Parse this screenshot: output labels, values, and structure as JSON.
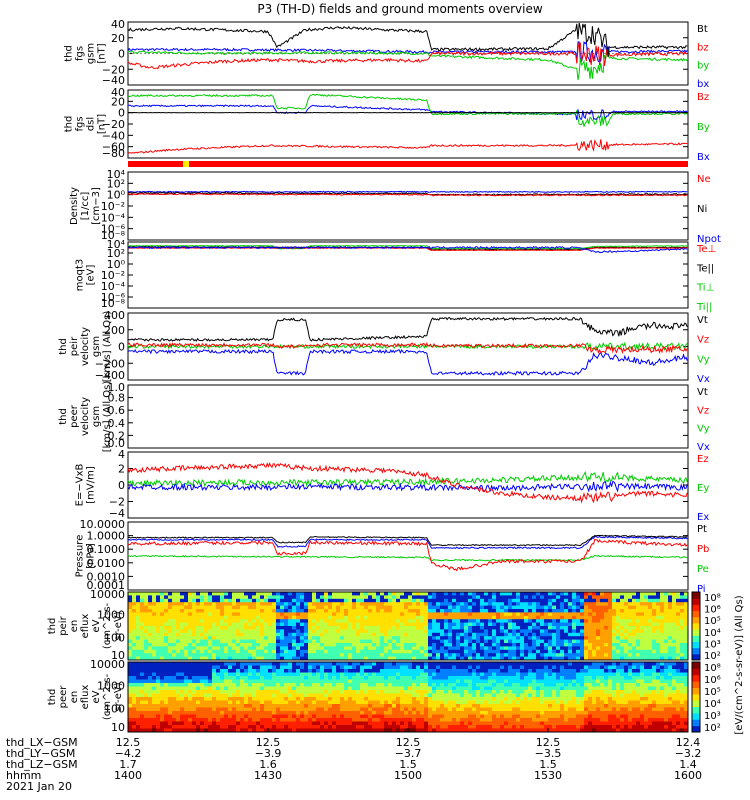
{
  "title": "P3 (TH-D) fields and ground moments overview",
  "panels": [
    {
      "id": "fgs",
      "ylabel": [
        "thd",
        "fgs",
        "gsm",
        "[nT]"
      ],
      "ticks": [
        "40",
        "20",
        "0",
        "−20",
        "−40"
      ],
      "legend": [
        {
          "text": "Bt",
          "color": "#000000"
        },
        {
          "text": "bz",
          "color": "#ff0000"
        },
        {
          "text": "by",
          "color": "#00cc00"
        },
        {
          "text": "bx",
          "color": "#0000ff"
        }
      ]
    },
    {
      "id": "fgs-dsl",
      "ylabel": [
        "thd",
        "fgs",
        "dsl",
        "[nT]"
      ],
      "ticks": [
        "40",
        "20",
        "0",
        "−20",
        "−40",
        "−60",
        "−80"
      ],
      "legend": [
        {
          "text": "Bz",
          "color": "#ff0000"
        },
        {
          "text": "By",
          "color": "#00cc00"
        },
        {
          "text": "Bx",
          "color": "#0000ff"
        }
      ]
    },
    {
      "id": "density",
      "ylabel": [
        "Density",
        "[1/cc]",
        "[cm−3]"
      ],
      "ticks": [
        "10⁴",
        "10²",
        "10⁰",
        "10⁻²",
        "10⁻⁴",
        "10⁻⁶",
        "10⁻⁸"
      ],
      "legend": [
        {
          "text": "Ne",
          "color": "#ff0000"
        },
        {
          "text": "Ni",
          "color": "#000000"
        },
        {
          "text": "Npot",
          "color": "#0000ff"
        }
      ]
    },
    {
      "id": "temp",
      "ylabel": [
        "moqt3",
        "[eV]"
      ],
      "ticks": [
        "10⁴",
        "10²",
        "10⁰",
        "10⁻²",
        "10⁻⁴",
        "10⁻⁶",
        "10⁻⁸"
      ],
      "legend": [
        {
          "text": "Te⊥",
          "color": "#ff0000"
        },
        {
          "text": "Te||",
          "color": "#000000"
        },
        {
          "text": "Ti⊥",
          "color": "#00cc00"
        },
        {
          "text": "Ti||",
          "color": "#00cc00"
        }
      ]
    },
    {
      "id": "peir-vel",
      "ylabel": [
        "thd",
        "peir",
        "velocity",
        "gsm",
        "[km/s] (All Qs)"
      ],
      "ticks": [
        "400",
        "200",
        "0",
        "−200",
        "−400"
      ],
      "legend": [
        {
          "text": "Vt",
          "color": "#000000"
        },
        {
          "text": "Vz",
          "color": "#ff0000"
        },
        {
          "text": "Vy",
          "color": "#00cc00"
        },
        {
          "text": "Vx",
          "color": "#0000ff"
        }
      ]
    },
    {
      "id": "peer-vel",
      "ylabel": [
        "thd",
        "peer",
        "velocity",
        "gsm",
        "[km/s] (All Qs)"
      ],
      "ticks": [
        "1.0",
        "0.8",
        "0.6",
        "0.4",
        "0.2",
        "0.0"
      ],
      "legend": [
        {
          "text": "Vt",
          "color": "#000000"
        },
        {
          "text": "Vz",
          "color": "#ff0000"
        },
        {
          "text": "Vy",
          "color": "#00cc00"
        },
        {
          "text": "Vx",
          "color": "#0000ff"
        }
      ]
    },
    {
      "id": "efield",
      "ylabel": [
        "E=−VxB",
        "[mV/m]"
      ],
      "ticks": [
        "4",
        "2",
        "0",
        "−2",
        "−4"
      ],
      "legend": [
        {
          "text": "Ez",
          "color": "#ff0000"
        },
        {
          "text": "Ey",
          "color": "#00cc00"
        },
        {
          "text": "Ex",
          "color": "#0000ff"
        }
      ]
    },
    {
      "id": "pressure",
      "ylabel": [
        "Pressure",
        "[nPa]"
      ],
      "ticks": [
        "10.0000",
        "1.0000",
        "0.1000",
        "0.0100",
        "0.0010",
        "0.0001"
      ],
      "legend": [
        {
          "text": "Pt",
          "color": "#000000"
        },
        {
          "text": "Pb",
          "color": "#ff0000"
        },
        {
          "text": "Pe",
          "color": "#00cc00"
        },
        {
          "text": "Pi",
          "color": "#0000ff"
        }
      ]
    },
    {
      "id": "peir-spec",
      "ylabel": [
        "thd",
        "peir",
        "en",
        "eflux",
        "eV",
        "(cm^2-s-",
        "sr-eV)"
      ],
      "ticks": [
        "10000",
        "1000",
        "100",
        "10"
      ]
    },
    {
      "id": "peer-spec",
      "ylabel": [
        "thd",
        "peer",
        "en",
        "eflux",
        "eV",
        "(cm^2-s-",
        "sr-eV)"
      ],
      "ticks": [
        "10000",
        "1000",
        "100",
        "10"
      ]
    }
  ],
  "colorbar": {
    "ticks": [
      "10⁸",
      "10⁶",
      "10⁵",
      "10⁴",
      "10³",
      "10²"
    ],
    "ticks2": [
      "10⁸",
      "10⁶",
      "10⁵",
      "10⁴",
      "10³",
      "10²"
    ],
    "label": "[eV/(cm^2-s-sr-eV)] (All Qs)"
  },
  "xaxis": {
    "rows": [
      {
        "label": "thd_LX−GSM",
        "values": [
          "12.5",
          "12.5",
          "12.5",
          "12.5",
          "12.4"
        ]
      },
      {
        "label": "thd_LY−GSM",
        "values": [
          "−4.2",
          "−3.9",
          "−3.7",
          "−3.5",
          "−3.2"
        ]
      },
      {
        "label": "thd_LZ−GSM",
        "values": [
          "1.7",
          "1.6",
          "1.5",
          "1.5",
          "1.4"
        ]
      },
      {
        "label": "hhmm",
        "values": [
          "1400",
          "1430",
          "1500",
          "1530",
          "1600"
        ]
      }
    ],
    "date": "2021 Jan 20"
  },
  "chart_data": {
    "type": "line",
    "title": "P3 (TH-D) fields and ground moments overview",
    "x_range": [
      "14:00",
      "16:00"
    ],
    "x_ticks": [
      "1400",
      "1430",
      "1500",
      "1530",
      "1600"
    ],
    "series": [
      {
        "name": "Bt",
        "panel": "fgs",
        "values": [
          [
            0,
            30
          ],
          [
            10,
            32
          ],
          [
            20,
            30
          ],
          [
            30,
            28
          ],
          [
            32,
            8
          ],
          [
            38,
            30
          ],
          [
            45,
            33
          ],
          [
            55,
            30
          ],
          [
            64,
            28
          ],
          [
            65,
            5
          ],
          [
            90,
            6
          ],
          [
            96,
            30
          ],
          [
            100,
            25
          ],
          [
            103,
            8
          ],
          [
            120,
            8
          ]
        ]
      },
      {
        "name": "bz",
        "panel": "fgs",
        "values": [
          [
            0,
            -12
          ],
          [
            5,
            -18
          ],
          [
            12,
            -14
          ],
          [
            20,
            -10
          ],
          [
            30,
            -8
          ],
          [
            40,
            -10
          ],
          [
            55,
            -8
          ],
          [
            64,
            -10
          ],
          [
            65,
            0
          ],
          [
            90,
            0
          ],
          [
            96,
            0
          ],
          [
            100,
            -2
          ],
          [
            120,
            0
          ]
        ]
      },
      {
        "name": "by",
        "panel": "fgs",
        "values": [
          [
            0,
            2
          ],
          [
            20,
            0
          ],
          [
            40,
            1
          ],
          [
            64,
            0
          ],
          [
            65,
            -3
          ],
          [
            90,
            -8
          ],
          [
            96,
            -20
          ],
          [
            100,
            -18
          ],
          [
            103,
            -6
          ],
          [
            120,
            -8
          ]
        ]
      },
      {
        "name": "bx",
        "panel": "fgs",
        "values": [
          [
            0,
            5
          ],
          [
            20,
            5
          ],
          [
            40,
            4
          ],
          [
            64,
            2
          ],
          [
            65,
            2
          ],
          [
            90,
            2
          ],
          [
            96,
            2
          ],
          [
            120,
            3
          ]
        ]
      },
      {
        "name": "Vt",
        "panel": "peir-vel",
        "values": [
          [
            0,
            80
          ],
          [
            31,
            80
          ],
          [
            32,
            320
          ],
          [
            38,
            320
          ],
          [
            39,
            80
          ],
          [
            64,
            120
          ],
          [
            65,
            330
          ],
          [
            97,
            330
          ],
          [
            100,
            180
          ],
          [
            105,
            150
          ],
          [
            108,
            220
          ],
          [
            112,
            250
          ],
          [
            120,
            240
          ]
        ]
      },
      {
        "name": "Vx",
        "panel": "peir-vel",
        "values": [
          [
            0,
            -60
          ],
          [
            31,
            -60
          ],
          [
            32,
            -320
          ],
          [
            38,
            -320
          ],
          [
            39,
            -60
          ],
          [
            64,
            -60
          ],
          [
            65,
            -320
          ],
          [
            97,
            -320
          ],
          [
            100,
            -100
          ],
          [
            108,
            -150
          ],
          [
            112,
            -200
          ],
          [
            120,
            -130
          ]
        ]
      },
      {
        "name": "Ez",
        "panel": "efield",
        "values": [
          [
            0,
            1.8
          ],
          [
            20,
            2.2
          ],
          [
            30,
            2.4
          ],
          [
            40,
            2.0
          ],
          [
            55,
            1.8
          ],
          [
            64,
            1.2
          ],
          [
            70,
            0.0
          ],
          [
            80,
            -1.0
          ],
          [
            90,
            -1.5
          ],
          [
            100,
            -1.6
          ],
          [
            110,
            -1.0
          ],
          [
            120,
            -1.2
          ]
        ]
      },
      {
        "name": "Ey",
        "panel": "efield",
        "values": [
          [
            0,
            0.2
          ],
          [
            20,
            0.3
          ],
          [
            40,
            0.3
          ],
          [
            64,
            0.4
          ],
          [
            80,
            0.6
          ],
          [
            100,
            1.0
          ],
          [
            110,
            0.8
          ],
          [
            120,
            0.5
          ]
        ]
      },
      {
        "name": "Ex",
        "panel": "efield",
        "values": [
          [
            0,
            -0.2
          ],
          [
            20,
            -0.3
          ],
          [
            40,
            -0.2
          ],
          [
            64,
            -0.3
          ],
          [
            80,
            -0.4
          ],
          [
            100,
            -0.1
          ],
          [
            120,
            -0.3
          ]
        ]
      }
    ]
  }
}
